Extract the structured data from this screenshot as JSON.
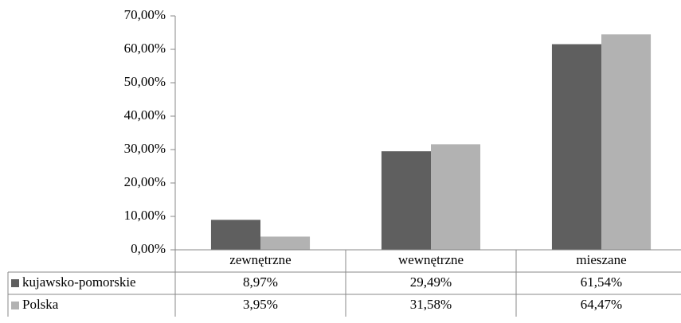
{
  "chart_data": {
    "type": "bar",
    "categories": [
      "zewnętrzne",
      "wewnętrzne",
      "mieszane"
    ],
    "series": [
      {
        "name": "kujawsko-pomorskie",
        "color": "#5f5f5f",
        "values": [
          8.97,
          29.49,
          61.54
        ],
        "value_labels": [
          "8,97%",
          "29,49%",
          "61,54%"
        ]
      },
      {
        "name": "Polska",
        "color": "#b2b2b2",
        "values": [
          3.95,
          31.58,
          64.47
        ],
        "value_labels": [
          "3,95%",
          "31,58%",
          "64,47%"
        ]
      }
    ],
    "ylim": [
      0,
      70
    ],
    "yticks": [
      {
        "value": 0,
        "label": "0,00%"
      },
      {
        "value": 10,
        "label": "10,00%"
      },
      {
        "value": 20,
        "label": "20,00%"
      },
      {
        "value": 30,
        "label": "30,00%"
      },
      {
        "value": 40,
        "label": "40,00%"
      },
      {
        "value": 50,
        "label": "50,00%"
      },
      {
        "value": 60,
        "label": "60,00%"
      },
      {
        "value": 70,
        "label": "70,00%"
      }
    ],
    "grid": false
  }
}
